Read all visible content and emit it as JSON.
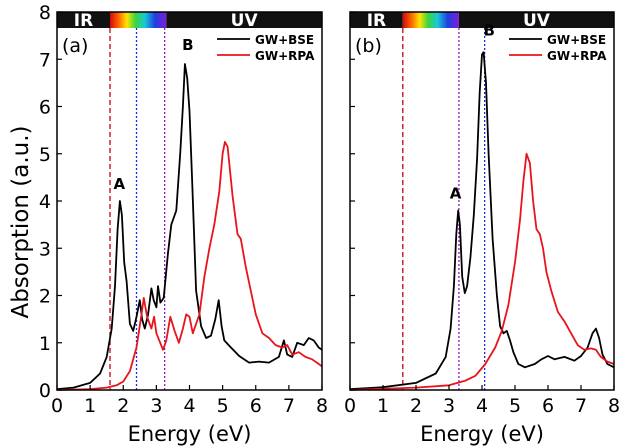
{
  "chart_data": {
    "type": "line",
    "ylabel": "Absorption (a.u.)",
    "xlabel": "Energy (eV)",
    "xlim": [
      0,
      8
    ],
    "ylim": [
      0,
      8
    ],
    "xticks": [
      0,
      1,
      2,
      3,
      4,
      5,
      6,
      7,
      8
    ],
    "yticks": [
      0,
      1,
      2,
      3,
      4,
      5,
      6,
      7,
      8
    ],
    "x_tick_labels": [
      "0",
      "1",
      "2",
      "3",
      "4",
      "5",
      "6",
      "7",
      "8"
    ],
    "y_tick_labels": [
      "0",
      "1",
      "2",
      "3",
      "4",
      "5",
      "6",
      "7",
      "8"
    ],
    "legend_placement": "top-right",
    "series_colors": {
      "GW+BSE": "#000000",
      "GW+RPA": "#e8141c"
    },
    "panels": [
      {
        "label": "(a)",
        "band_ir": "IR",
        "band_uv": "UV",
        "legend": [
          "GW+BSE",
          "GW+RPA"
        ],
        "annotations": [
          {
            "text": "A",
            "x": 1.88,
            "y": 4.25
          },
          {
            "text": "B",
            "x": 3.95,
            "y": 7.2
          }
        ],
        "vlines": [
          {
            "x": 1.6,
            "color": "#c0001a"
          },
          {
            "x": 2.4,
            "color": "#1a2bd0"
          },
          {
            "x": 3.25,
            "color": "#9a16c9"
          }
        ],
        "series": [
          {
            "name": "GW+BSE",
            "points": [
              [
                0,
                0.02
              ],
              [
                0.5,
                0.05
              ],
              [
                1.0,
                0.15
              ],
              [
                1.3,
                0.35
              ],
              [
                1.5,
                0.7
              ],
              [
                1.65,
                1.3
              ],
              [
                1.75,
                2.2
              ],
              [
                1.83,
                3.4
              ],
              [
                1.9,
                4.0
              ],
              [
                1.96,
                3.7
              ],
              [
                2.03,
                2.7
              ],
              [
                2.1,
                2.3
              ],
              [
                2.2,
                1.4
              ],
              [
                2.3,
                1.25
              ],
              [
                2.4,
                1.55
              ],
              [
                2.5,
                1.9
              ],
              [
                2.57,
                1.5
              ],
              [
                2.65,
                1.3
              ],
              [
                2.75,
                1.6
              ],
              [
                2.85,
                2.15
              ],
              [
                2.92,
                1.9
              ],
              [
                3.0,
                1.75
              ],
              [
                3.05,
                2.2
              ],
              [
                3.12,
                1.85
              ],
              [
                3.22,
                1.95
              ],
              [
                3.35,
                2.9
              ],
              [
                3.45,
                3.5
              ],
              [
                3.6,
                3.8
              ],
              [
                3.72,
                5.0
              ],
              [
                3.8,
                6.0
              ],
              [
                3.86,
                6.9
              ],
              [
                3.93,
                6.6
              ],
              [
                4.0,
                5.9
              ],
              [
                4.08,
                4.4
              ],
              [
                4.2,
                2.1
              ],
              [
                4.35,
                1.35
              ],
              [
                4.5,
                1.1
              ],
              [
                4.65,
                1.15
              ],
              [
                4.78,
                1.5
              ],
              [
                4.88,
                1.9
              ],
              [
                4.97,
                1.35
              ],
              [
                5.05,
                1.05
              ],
              [
                5.25,
                0.9
              ],
              [
                5.5,
                0.72
              ],
              [
                5.8,
                0.58
              ],
              [
                6.1,
                0.6
              ],
              [
                6.4,
                0.58
              ],
              [
                6.7,
                0.7
              ],
              [
                6.85,
                1.05
              ],
              [
                6.95,
                0.75
              ],
              [
                7.1,
                0.7
              ],
              [
                7.25,
                1.0
              ],
              [
                7.45,
                0.95
              ],
              [
                7.6,
                1.1
              ],
              [
                7.75,
                1.05
              ],
              [
                7.9,
                0.9
              ],
              [
                8.0,
                0.85
              ]
            ]
          },
          {
            "name": "GW+RPA",
            "points": [
              [
                0,
                0.0
              ],
              [
                1.0,
                0.02
              ],
              [
                1.5,
                0.05
              ],
              [
                1.8,
                0.1
              ],
              [
                2.0,
                0.18
              ],
              [
                2.2,
                0.4
              ],
              [
                2.4,
                0.9
              ],
              [
                2.55,
                1.6
              ],
              [
                2.62,
                1.95
              ],
              [
                2.72,
                1.55
              ],
              [
                2.85,
                1.3
              ],
              [
                2.93,
                1.55
              ],
              [
                3.0,
                1.2
              ],
              [
                3.2,
                0.85
              ],
              [
                3.3,
                1.05
              ],
              [
                3.42,
                1.55
              ],
              [
                3.55,
                1.25
              ],
              [
                3.68,
                1.0
              ],
              [
                3.8,
                1.3
              ],
              [
                3.9,
                1.6
              ],
              [
                4.0,
                1.55
              ],
              [
                4.1,
                1.2
              ],
              [
                4.3,
                1.6
              ],
              [
                4.45,
                2.4
              ],
              [
                4.6,
                3.0
              ],
              [
                4.75,
                3.5
              ],
              [
                4.9,
                4.2
              ],
              [
                5.0,
                5.0
              ],
              [
                5.07,
                5.25
              ],
              [
                5.15,
                5.15
              ],
              [
                5.3,
                4.1
              ],
              [
                5.45,
                3.3
              ],
              [
                5.55,
                3.2
              ],
              [
                5.7,
                2.6
              ],
              [
                5.85,
                2.1
              ],
              [
                6.0,
                1.6
              ],
              [
                6.2,
                1.2
              ],
              [
                6.4,
                1.1
              ],
              [
                6.6,
                0.95
              ],
              [
                6.8,
                0.9
              ],
              [
                6.95,
                0.95
              ],
              [
                7.1,
                0.75
              ],
              [
                7.3,
                0.8
              ],
              [
                7.5,
                0.7
              ],
              [
                7.7,
                0.65
              ],
              [
                7.9,
                0.55
              ],
              [
                8.0,
                0.5
              ]
            ]
          }
        ]
      },
      {
        "label": "(b)",
        "band_ir": "IR",
        "band_uv": "UV",
        "legend": [
          "GW+BSE",
          "GW+RPA"
        ],
        "annotations": [
          {
            "text": "A",
            "x": 3.2,
            "y": 4.05
          },
          {
            "text": "B",
            "x": 4.22,
            "y": 7.5
          }
        ],
        "vlines": [
          {
            "x": 1.6,
            "color": "#c0001a"
          },
          {
            "x": 3.3,
            "color": "#9a16c9"
          },
          {
            "x": 4.08,
            "color": "#1a2bd0"
          }
        ],
        "series": [
          {
            "name": "GW+BSE",
            "points": [
              [
                0,
                0.02
              ],
              [
                1.0,
                0.06
              ],
              [
                2.0,
                0.15
              ],
              [
                2.6,
                0.35
              ],
              [
                2.9,
                0.7
              ],
              [
                3.05,
                1.3
              ],
              [
                3.15,
                2.2
              ],
              [
                3.22,
                3.3
              ],
              [
                3.28,
                3.8
              ],
              [
                3.33,
                3.5
              ],
              [
                3.4,
                2.4
              ],
              [
                3.48,
                2.05
              ],
              [
                3.55,
                2.2
              ],
              [
                3.65,
                2.8
              ],
              [
                3.75,
                3.7
              ],
              [
                3.85,
                4.9
              ],
              [
                3.93,
                6.3
              ],
              [
                4.0,
                7.1
              ],
              [
                4.05,
                7.15
              ],
              [
                4.12,
                6.5
              ],
              [
                4.2,
                5.0
              ],
              [
                4.32,
                3.2
              ],
              [
                4.45,
                2.0
              ],
              [
                4.55,
                1.35
              ],
              [
                4.65,
                1.2
              ],
              [
                4.75,
                1.25
              ],
              [
                4.85,
                1.05
              ],
              [
                4.95,
                0.8
              ],
              [
                5.1,
                0.55
              ],
              [
                5.3,
                0.48
              ],
              [
                5.6,
                0.55
              ],
              [
                5.8,
                0.65
              ],
              [
                6.0,
                0.72
              ],
              [
                6.2,
                0.65
              ],
              [
                6.5,
                0.7
              ],
              [
                6.8,
                0.62
              ],
              [
                7.0,
                0.72
              ],
              [
                7.2,
                0.9
              ],
              [
                7.35,
                1.2
              ],
              [
                7.45,
                1.3
              ],
              [
                7.55,
                1.1
              ],
              [
                7.65,
                0.75
              ],
              [
                7.8,
                0.55
              ],
              [
                8.0,
                0.48
              ]
            ]
          },
          {
            "name": "GW+RPA",
            "points": [
              [
                0,
                0.0
              ],
              [
                2.0,
                0.05
              ],
              [
                3.0,
                0.1
              ],
              [
                3.5,
                0.2
              ],
              [
                3.8,
                0.3
              ],
              [
                4.1,
                0.55
              ],
              [
                4.4,
                0.9
              ],
              [
                4.6,
                1.25
              ],
              [
                4.8,
                1.8
              ],
              [
                5.0,
                2.7
              ],
              [
                5.15,
                3.6
              ],
              [
                5.25,
                4.4
              ],
              [
                5.35,
                5.0
              ],
              [
                5.45,
                4.8
              ],
              [
                5.55,
                4.0
              ],
              [
                5.65,
                3.4
              ],
              [
                5.75,
                3.3
              ],
              [
                5.85,
                3.0
              ],
              [
                5.95,
                2.5
              ],
              [
                6.1,
                2.1
              ],
              [
                6.3,
                1.65
              ],
              [
                6.5,
                1.45
              ],
              [
                6.7,
                1.2
              ],
              [
                6.9,
                0.95
              ],
              [
                7.1,
                0.85
              ],
              [
                7.3,
                0.88
              ],
              [
                7.45,
                0.85
              ],
              [
                7.6,
                0.7
              ],
              [
                7.8,
                0.6
              ],
              [
                8.0,
                0.55
              ]
            ]
          }
        ]
      }
    ]
  }
}
